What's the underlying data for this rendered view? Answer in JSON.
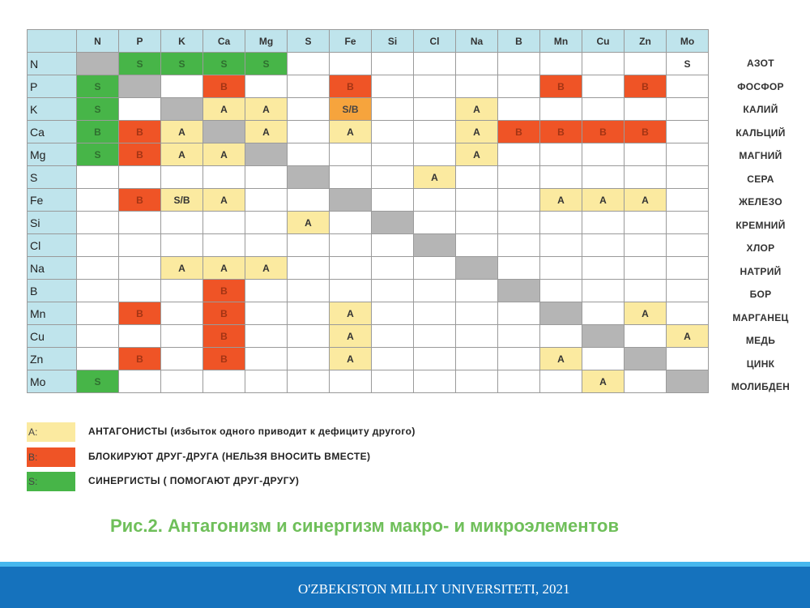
{
  "columns": [
    "N",
    "P",
    "K",
    "Ca",
    "Mg",
    "S",
    "Fe",
    "Si",
    "Cl",
    "Na",
    "B",
    "Mn",
    "Cu",
    "Zn",
    "Mo"
  ],
  "rows": [
    {
      "label": "N",
      "cells": [
        [
          "D",
          ""
        ],
        [
          "S",
          "S"
        ],
        [
          "S",
          "S"
        ],
        [
          "S",
          "S"
        ],
        [
          "S",
          "S"
        ],
        [
          "",
          ""
        ],
        [
          "",
          ""
        ],
        [
          "",
          ""
        ],
        [
          "",
          ""
        ],
        [
          "",
          ""
        ],
        [
          "",
          ""
        ],
        [
          "",
          ""
        ],
        [
          "",
          ""
        ],
        [
          "",
          ""
        ],
        [
          "",
          "S"
        ]
      ]
    },
    {
      "label": "P",
      "cells": [
        [
          "S",
          "S"
        ],
        [
          "D",
          ""
        ],
        [
          "",
          ""
        ],
        [
          "B",
          "B"
        ],
        [
          "",
          ""
        ],
        [
          "",
          ""
        ],
        [
          "B",
          "B"
        ],
        [
          "",
          ""
        ],
        [
          "",
          ""
        ],
        [
          "",
          ""
        ],
        [
          "",
          ""
        ],
        [
          "B",
          "B"
        ],
        [
          "",
          ""
        ],
        [
          "B",
          "B"
        ],
        [
          "",
          ""
        ]
      ]
    },
    {
      "label": "K",
      "cells": [
        [
          "S",
          "S"
        ],
        [
          "",
          ""
        ],
        [
          "D",
          ""
        ],
        [
          "A",
          "A"
        ],
        [
          "A",
          "A"
        ],
        [
          "",
          ""
        ],
        [
          "SB",
          "S/B"
        ],
        [
          "",
          ""
        ],
        [
          "",
          ""
        ],
        [
          "A",
          "A"
        ],
        [
          "",
          ""
        ],
        [
          "",
          ""
        ],
        [
          "",
          ""
        ],
        [
          "",
          ""
        ],
        [
          "",
          ""
        ]
      ]
    },
    {
      "label": "Ca",
      "cells": [
        [
          "S",
          "B"
        ],
        [
          "B",
          "B"
        ],
        [
          "A",
          "A"
        ],
        [
          "D",
          ""
        ],
        [
          "A",
          "A"
        ],
        [
          "",
          ""
        ],
        [
          "A",
          "A"
        ],
        [
          "",
          ""
        ],
        [
          "",
          ""
        ],
        [
          "A",
          "A"
        ],
        [
          "B",
          "B"
        ],
        [
          "B",
          "B"
        ],
        [
          "B",
          "B"
        ],
        [
          "B",
          "B"
        ],
        [
          "",
          ""
        ]
      ]
    },
    {
      "label": "Mg",
      "cells": [
        [
          "S",
          "S"
        ],
        [
          "B",
          "B"
        ],
        [
          "A",
          "A"
        ],
        [
          "A",
          "A"
        ],
        [
          "D",
          ""
        ],
        [
          "",
          ""
        ],
        [
          "",
          ""
        ],
        [
          "",
          ""
        ],
        [
          "",
          ""
        ],
        [
          "A",
          "A"
        ],
        [
          "",
          ""
        ],
        [
          "",
          ""
        ],
        [
          "",
          ""
        ],
        [
          "",
          ""
        ],
        [
          "",
          ""
        ]
      ]
    },
    {
      "label": "S",
      "cells": [
        [
          "",
          ""
        ],
        [
          "",
          ""
        ],
        [
          "",
          ""
        ],
        [
          "",
          ""
        ],
        [
          "",
          ""
        ],
        [
          "D",
          ""
        ],
        [
          "",
          ""
        ],
        [
          "",
          ""
        ],
        [
          "A",
          "A"
        ],
        [
          "",
          ""
        ],
        [
          "",
          ""
        ],
        [
          "",
          ""
        ],
        [
          "",
          ""
        ],
        [
          "",
          ""
        ],
        [
          "",
          ""
        ]
      ]
    },
    {
      "label": "Fe",
      "cells": [
        [
          "",
          ""
        ],
        [
          "B",
          "B"
        ],
        [
          "A",
          "S/B"
        ],
        [
          "A",
          "A"
        ],
        [
          "",
          ""
        ],
        [
          "",
          ""
        ],
        [
          "D",
          ""
        ],
        [
          "",
          ""
        ],
        [
          "",
          ""
        ],
        [
          "",
          ""
        ],
        [
          "",
          ""
        ],
        [
          "A",
          "A"
        ],
        [
          "A",
          "A"
        ],
        [
          "A",
          "A"
        ],
        [
          "",
          ""
        ]
      ]
    },
    {
      "label": "Si",
      "cells": [
        [
          "",
          ""
        ],
        [
          "",
          ""
        ],
        [
          "",
          ""
        ],
        [
          "",
          ""
        ],
        [
          "",
          ""
        ],
        [
          "A",
          "A"
        ],
        [
          "",
          ""
        ],
        [
          "D",
          ""
        ],
        [
          "",
          ""
        ],
        [
          "",
          ""
        ],
        [
          "",
          ""
        ],
        [
          "",
          ""
        ],
        [
          "",
          ""
        ],
        [
          "",
          ""
        ],
        [
          "",
          ""
        ]
      ]
    },
    {
      "label": "Cl",
      "cells": [
        [
          "",
          ""
        ],
        [
          "",
          ""
        ],
        [
          "",
          ""
        ],
        [
          "",
          ""
        ],
        [
          "",
          ""
        ],
        [
          "",
          ""
        ],
        [
          "",
          ""
        ],
        [
          "",
          ""
        ],
        [
          "D",
          ""
        ],
        [
          "",
          ""
        ],
        [
          "",
          ""
        ],
        [
          "",
          ""
        ],
        [
          "",
          ""
        ],
        [
          "",
          ""
        ],
        [
          "",
          ""
        ]
      ]
    },
    {
      "label": "Na",
      "cells": [
        [
          "",
          ""
        ],
        [
          "",
          ""
        ],
        [
          "A",
          "A"
        ],
        [
          "A",
          "A"
        ],
        [
          "A",
          "A"
        ],
        [
          "",
          ""
        ],
        [
          "",
          ""
        ],
        [
          "",
          ""
        ],
        [
          "",
          ""
        ],
        [
          "D",
          ""
        ],
        [
          "",
          ""
        ],
        [
          "",
          ""
        ],
        [
          "",
          ""
        ],
        [
          "",
          ""
        ],
        [
          "",
          ""
        ]
      ]
    },
    {
      "label": "B",
      "cells": [
        [
          "",
          ""
        ],
        [
          "",
          ""
        ],
        [
          "",
          ""
        ],
        [
          "B",
          "B"
        ],
        [
          "",
          ""
        ],
        [
          "",
          ""
        ],
        [
          "",
          ""
        ],
        [
          "",
          ""
        ],
        [
          "",
          ""
        ],
        [
          "",
          ""
        ],
        [
          "D",
          ""
        ],
        [
          "",
          ""
        ],
        [
          "",
          ""
        ],
        [
          "",
          ""
        ],
        [
          "",
          ""
        ]
      ]
    },
    {
      "label": "Mn",
      "cells": [
        [
          "",
          ""
        ],
        [
          "B",
          "B"
        ],
        [
          "",
          ""
        ],
        [
          "B",
          "B"
        ],
        [
          "",
          ""
        ],
        [
          "",
          ""
        ],
        [
          "A",
          "A"
        ],
        [
          "",
          ""
        ],
        [
          "",
          ""
        ],
        [
          "",
          ""
        ],
        [
          "",
          ""
        ],
        [
          "D",
          ""
        ],
        [
          "",
          ""
        ],
        [
          "A",
          "A"
        ],
        [
          "",
          ""
        ]
      ]
    },
    {
      "label": "Cu",
      "cells": [
        [
          "",
          ""
        ],
        [
          "",
          ""
        ],
        [
          "",
          ""
        ],
        [
          "B",
          "B"
        ],
        [
          "",
          ""
        ],
        [
          "",
          ""
        ],
        [
          "A",
          "A"
        ],
        [
          "",
          ""
        ],
        [
          "",
          ""
        ],
        [
          "",
          ""
        ],
        [
          "",
          ""
        ],
        [
          "",
          ""
        ],
        [
          "D",
          ""
        ],
        [
          "",
          ""
        ],
        [
          "A",
          "A"
        ]
      ]
    },
    {
      "label": "Zn",
      "cells": [
        [
          "",
          ""
        ],
        [
          "B",
          "B"
        ],
        [
          "",
          ""
        ],
        [
          "B",
          "B"
        ],
        [
          "",
          ""
        ],
        [
          "",
          ""
        ],
        [
          "A",
          "A"
        ],
        [
          "",
          ""
        ],
        [
          "",
          ""
        ],
        [
          "",
          ""
        ],
        [
          "",
          ""
        ],
        [
          "A",
          "A"
        ],
        [
          "",
          ""
        ],
        [
          "D",
          ""
        ],
        [
          "",
          ""
        ]
      ]
    },
    {
      "label": "Mo",
      "cells": [
        [
          "S",
          "S"
        ],
        [
          "",
          ""
        ],
        [
          "",
          ""
        ],
        [
          "",
          ""
        ],
        [
          "",
          ""
        ],
        [
          "",
          ""
        ],
        [
          "",
          ""
        ],
        [
          "",
          ""
        ],
        [
          "",
          ""
        ],
        [
          "",
          ""
        ],
        [
          "",
          ""
        ],
        [
          "",
          ""
        ],
        [
          "A",
          "A"
        ],
        [
          "",
          ""
        ],
        [
          "D",
          ""
        ]
      ]
    }
  ],
  "russian_names": [
    "АЗОТ",
    "ФОСФОР",
    "КАЛИЙ",
    "КАЛЬЦИЙ",
    "МАГНИЙ",
    "СЕРА",
    "ЖЕЛЕЗО",
    "КРЕМНИЙ",
    "ХЛОР",
    "НАТРИЙ",
    "БОР",
    "МАРГАНЕЦ",
    "МЕДЬ",
    "ЦИНК",
    "МОЛИБДЕН"
  ],
  "legend": [
    {
      "key": "A:",
      "text": "АНТАГОНИСТЫ  (избыток одного приводит к дефициту другого)",
      "color": "#fbeaa0"
    },
    {
      "key": "B:",
      "text": "БЛОКИРУЮТ ДРУГ-ДРУГА   (НЕЛЬЗЯ ВНОСИТЬ ВМЕСТЕ)",
      "color": "#ef5426"
    },
    {
      "key": "S:",
      "text": "СИНЕРГИСТЫ (  ПОМОГАЮТ ДРУГ-ДРУГУ)",
      "color": "#47b548"
    }
  ],
  "caption": "Рис.2.  Антагонизм и синергизм макро- и микроэлементов",
  "footer": "O'ZBEKISTON MILLIY UNIVERSITETI,   2021",
  "colors": {
    "A": "#fbeaa0",
    "B": "#ef5426",
    "S": "#47b548",
    "SB": "#f6a43d",
    "diag": "#b5b5b5",
    "header": "#bfe4ec",
    "footer": "#1572bd"
  }
}
